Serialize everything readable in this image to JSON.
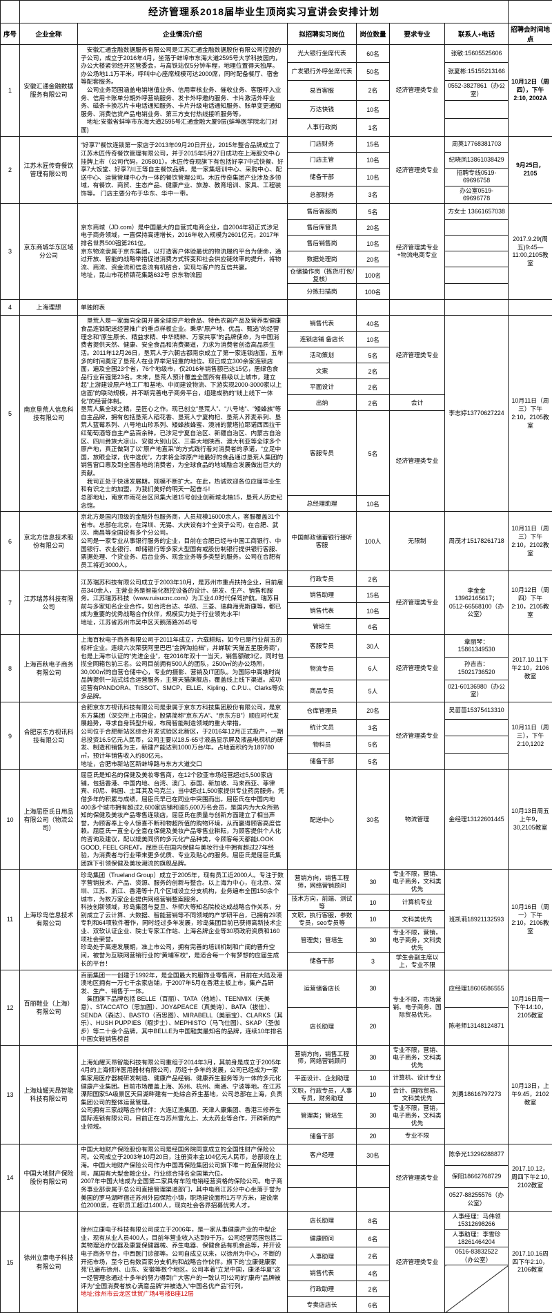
{
  "title": "经济管理系2018届毕业生顶岗实习宣讲会安排计划",
  "headers": {
    "seq": "序号",
    "company": "企业全称",
    "intro": "企业情况介绍",
    "position": "拟招聘实习岗位",
    "count": "岗位数量",
    "major": "要求专业",
    "contact": "联系人+电话",
    "schedule": "招聘会时间地点"
  },
  "companies": [
    {
      "seq": "1",
      "name": "安徽汇通金融数据服务有限公司",
      "intro": [
        {
          "text": "　安徽汇通金融数据服务有限公司是江苏汇通金融数据股份有限公司控股的子公司，成立于2016年4月，坐落于蚌埠市东海大道2595号大学科技园内，办公大楼紧邻经开区管委会，与高铁站仅5分钟车程，地理位置得天独厚。办公场地1.1万平米，呼叫中心座席规模可达2000席，同时配备餐厅、宿舍等配套服务。"
        },
        {
          "text": "　公司业务范围涵盖电销增值业务、信用审核业务、催收业务、客服呼入业务、信用卡账单分期外呼营销服务、发卡外呼邀约服务、卡片激活外呼业务、磁条卡换芯片卡电话通知服务、卡片升级电话通知服务、账单变更通知服务、消费信贷产品电销业务、第三方支付热线接听服务等。"
        },
        {
          "text": "　地址:安徽省蚌埠市东海大道2595号汇通金融大厦9层(蚌埠医学院北门对面)"
        }
      ],
      "positions": [
        {
          "name": "光大银行坐席代表",
          "count": "60名"
        },
        {
          "name": "广发银行外呼坐席代表",
          "count": "50名"
        },
        {
          "name": "易百客服",
          "count": "2名"
        },
        {
          "name": "万达快钱",
          "count": "10名"
        },
        {
          "name": "人事行政岗",
          "count": "1名"
        }
      ],
      "majors": [
        {
          "text": "经济管理类专业",
          "span": 5
        }
      ],
      "contacts": [
        {
          "text": "张敏:15605525606",
          "span": 1
        },
        {
          "text": "张夏彬:15155213166",
          "span": 1
        },
        {
          "text": "0552-3827861（办公室）",
          "span": 1
        },
        {
          "text": "",
          "span": 1
        },
        {
          "text": "",
          "span": 1
        }
      ],
      "schedule": "10月12日（周四），下午2:10, 2002A",
      "schedule_bold": true
    },
    {
      "seq": "2",
      "name": "江苏木匠传奇餐饮管理有限公司",
      "intro": [
        {
          "text": "“好享7”餐饮连锁第一家店于2013年09月20日开业，2015年整合品牌成立了江苏木匠传奇餐饮管理有限公司，并于2015年5月27日成功在上海股交中心挂牌上市（公司代码，205801）。木匠传奇现旗下有包括好享7中式快餐、好享7大饭堂、好享7川王等自主餐饮品牌，是一家集培训中心、采购中心、配送中心、运营管理中心为一体的餐饮管理公司。木匠传奇集团产业涉及多领域，有餐饮、商贸、生态产品、健康产业、旅游、教育培训、家具、工程装饰等。 门店主要分布于华东、华中一带。"
        }
      ],
      "positions": [
        {
          "name": "门店财务",
          "count": "15名"
        },
        {
          "name": "门店主管",
          "count": "10名"
        },
        {
          "name": "储备干部",
          "count": "10名"
        },
        {
          "name": "总部财务",
          "count": "3名"
        }
      ],
      "majors": [
        {
          "text": "经济管理类专业",
          "span": 4
        }
      ],
      "contacts": [
        {
          "text": "周英17768381703",
          "span": 1
        },
        {
          "text": "纪晓凤13861038429",
          "span": 1
        },
        {
          "text": "招聘专线0519-69696758",
          "span": 1
        },
        {
          "text": "办公室0519-69696778",
          "span": 1
        }
      ],
      "schedule": "9月25日，2105",
      "schedule_bold": true
    },
    {
      "seq": "3",
      "name": "京东商城华东区域分公司",
      "intro": [
        {
          "text": "京东商城（JD.com）是中国最大的自营式电商企业，自2004年初正式涉足电子商务领域，一直保持高速增长，2016年收入规模为2601亿元，2017年排名世界500强第261位。"
        },
        {
          "text": "京东物流隶属于京东集团，以打造客户体验最优的物流履约平台为使命，通过开放、智能的战略举措促进消费方式转变和社会供应链效率的提升，将物流、商流、资金流和信息流有机结合，实现与客户的互信共赢。"
        },
        {
          "text": "地址，昆山市花桥镇花集路632号 京东物流园"
        }
      ],
      "positions": [
        {
          "name": "售后客服岗",
          "count": "5名"
        },
        {
          "name": "售后库管员",
          "count": "20名"
        },
        {
          "name": "售后销售岗",
          "count": "10名"
        },
        {
          "name": "数据处理岗",
          "count": "20名"
        },
        {
          "name": "仓储操作岗（拣货/打包/复核）",
          "count": "100名"
        },
        {
          "name": "分拣扫描岗",
          "count": "100名"
        }
      ],
      "majors": [
        {
          "text": "经济管理类专业+物流电商专业",
          "span": 6
        }
      ],
      "contacts": [
        {
          "text": "方女士 13661657038",
          "span": 1
        },
        {
          "text": "",
          "span": 1
        },
        {
          "text": "",
          "span": 1
        },
        {
          "text": "",
          "span": 1
        },
        {
          "text": "",
          "span": 1
        },
        {
          "text": "",
          "span": 1
        }
      ],
      "schedule": "2017.9.29(周五)9:45—11:00,2105教室"
    },
    {
      "seq": "4",
      "name": "上海理想",
      "intro": [
        {
          "text": "单独附表"
        }
      ],
      "positions": [],
      "majors": [],
      "contacts": [],
      "schedule": ""
    },
    {
      "seq": "5",
      "name": "南京垦荒人信息科技有限公司",
      "intro": [
        {
          "text": "　垦荒人是一家面向全国开展全球原产地食品、特色农副产品及营养型健康食品连锁配送经营推广的重点样板企业。秉承“原产地、优品、甄选”的经营理念和“原生原长、精益求精、中华精粹、万家共享”的品牌使命，为中国消费者提供天然、健康、安全食品和消费渠道，力求为消费者创造高品质生活。2011年12月26日，垦荒人于六朝古都南京成立了第一家连锁店面，五年多的时间奠定了垦荒人在业界举足轻重的地位。现已成立300余家连锁店面，遍及全国23个省，76个地级市，仅2016年销售额已达15亿，居绿色食品行业百强第23名。未来，垦荒人预计覆盖全国所有县级以上城市，建立起“上游建设原产地工厂和基地、中间建设物流、下游实现2000-3000家以上店面”的联动规模，并不断完善电子商务平台，组建成熟的“线上线下一体化”的经营体制。"
        },
        {
          "text": "垦荒人集全球之精，呈匠心之作。现已创立“垦荒人”、“八号地”、“矮蜂族”等自主品牌，拥有包括垦荒人稻花香、垦荒人宁夏枸杞、垦荒人荞麦系列、垦荒人蓝莓系列、八号地山珍系列、矮蜂族蜂蜜、澳洲的蒙塔拉耶诺西西拉干红葡萄酒等自主产品百余种。已涉足宁夏自治区、新疆自治区、内蒙古自治区、四川彝族大凉山、安徽大别山区、三秦大地陕西、澳大利亚等全球多个原产地，真正做到了以“原产地直采”的方式践行着对消费者的承诺，“立足中国，放眼全球，优中选优”，力求将全球原产地最好的食品通过垦荒人集团的销售窗口惠及到全国各地的消费者，为全球食品的地域融合发展做出巨大的贡献。"
        },
        {
          "text": "　我司正处于快速发展期，规模不断扩大。在此，热诚欢迎各位应届毕业生和有识之士的加盟，为我们美好的明天一起奋斗!"
        },
        {
          "text": "总部地址，南京市雨花台区凤集大道15号创业创新城北柚15，垦荒人历史纪念馆。"
        }
      ],
      "positions": [
        {
          "name": "销售代表",
          "count": "40名"
        },
        {
          "name": "连锁店铺 备店长",
          "count": "10名"
        },
        {
          "name": "活动策划",
          "count": "5名"
        },
        {
          "name": "文案",
          "count": "2名"
        },
        {
          "name": "平面设计",
          "count": "2名"
        },
        {
          "name": "出纳",
          "count": "2名"
        },
        {
          "name": "客服专员",
          "count": "5名"
        },
        {
          "name": "总经理助理",
          "count": "10名"
        }
      ],
      "majors": [
        {
          "text": "经济管理类专业",
          "span": 5
        },
        {
          "text": "会计",
          "span": 1
        },
        {
          "text": "经济管理类专业",
          "span": 2
        }
      ],
      "contacts": [
        {
          "text": "李志婷13770627224",
          "span": 8
        }
      ],
      "schedule": "10月11日（周三）下午2:10，2105教室"
    },
    {
      "seq": "6",
      "name": "京北方信息技术股份有限公司",
      "intro": [
        {
          "text": "京北方是国内顶级的金融外包服务商，人员规模16000余人，客服覆盖31个省市。总部在北京，在深圳、无锡、大庆设有3个全资子公司，在合肥、武汉、南昌等全国设有多个分公司。"
        },
        {
          "text": "公司是一家专业从事银行服务的企业，目前在合肥已经与中国工商银行、中国银行、农业银行、邮储银行等多家大型国有或股份制银行提供银行客服、票据处理、个贷业务、后台业务、现金业务等多类型的服务。公司在合肥有员工将近3000人。"
        }
      ],
      "positions": [
        {
          "name": "中国邮政储蓄银行接听客服",
          "count": "100人"
        }
      ],
      "majors": [
        {
          "text": "无限制",
          "span": 1
        }
      ],
      "contacts": [
        {
          "text": "周茂才15178261718",
          "span": 1
        }
      ],
      "schedule": "10月11日（周三）下午2:10，2102教室"
    },
    {
      "seq": "7",
      "name": "江苏瑞苏科技有限公司",
      "intro": [
        {
          "text": "江苏瑞苏科技有限公司成立于2003年10月，是苏州市重点扶持企业，目前雇员340余人，主营业务是智能化数控设备的设计、研发、生产、销售和服务。江苏瑞苏科技（www.ruisucnc.com）为工业4.0时代保驾护航。瑞苏目前与多家知名企业合作，如台湾台达、华硕、三菱、瑞典海克斯康等，都已成为重要的优秀战略合作伙伴，规模实力处于行业领先水平!"
        },
        {
          "text": "地址，江苏省苏州市吴中区天鹅荡路2645号"
        }
      ],
      "positions": [
        {
          "name": "行政专员",
          "count": "2名"
        },
        {
          "name": "销售助理",
          "count": "15名"
        },
        {
          "name": "销售代表",
          "count": "10名"
        },
        {
          "name": "管培生",
          "count": "6名"
        }
      ],
      "majors": [
        {
          "text": "经济管理类专业",
          "span": 4
        }
      ],
      "contacts": [
        {
          "text": "李金金13962165617；0512-66568100（办公室）",
          "span": 4
        }
      ],
      "schedule": "10月12日（周四）下午2:10，2105教室"
    },
    {
      "seq": "8",
      "name": "上海百秋电子商务有限公司",
      "intro": [
        {
          "text": "上海百秋电子商务有限公司于2011年成立，六载耕耘，如今已是行业前五的标杆企业。连续六次荣获阿里巴巴“金牌淘拍档”，并蝉联“天猫五星服务商”，也是上海市认证的“先进企业”，在2016年双十一当天，销售额破3亿，同时包揽全网箱包前三名。公司目前拥有500人的团队，2500㎡的办公场所，30,000㎡的自营仓储中心，专业的摄影、营销及IT团队。为国际中高端时尚品牌提供一站式综合运营服务，主营天猫旗舰店，覆盖线上线下渠道。成功运营有PANDORA、TISSOT、SMCP、ELLE、Kipling、C.P.U.、Clarks等众多品牌。"
        }
      ],
      "positions": [
        {
          "name": "客服专员",
          "count": "30人"
        },
        {
          "name": "物流专员",
          "count": "6人"
        },
        {
          "name": "商品专员",
          "count": "5人"
        }
      ],
      "majors": [
        {
          "text": "经济管理类专业",
          "span": 3
        }
      ],
      "contacts": [
        {
          "text": "章丽琴：15861349530",
          "span": 1
        },
        {
          "text": "孙吉吉：15021736520",
          "span": 1
        },
        {
          "text": "021-60136980（办公室）",
          "span": 1
        }
      ],
      "schedule": "2017.10.11下午2:10，2106教室"
    },
    {
      "seq": "9",
      "name": "合肥京东方视讯科技有限公司",
      "intro": [
        {
          "text": "合肥京东方视讯科技有限公司是隶属于京东方科技集团股份有限公司，是京东方集团（深交所上市国企，股票简称“京东方A”、“京东方B”）顺应时代发展趋势，寻求自身转型升级，布局智能制造领域的重大举措。"
        },
        {
          "text": "公司位于合肥新站区综合开发试验区北新区，于2016年12月正式投产，一期总投资16.5亿元人民币，公司主要以18.5-65寸液晶显示屏及液晶电视机的研发、制造和销售为主，新建产能达到1000万台/年。占地面积约为189780㎡，预计年销售收入约80亿元。"
        },
        {
          "text": "地址，合肥市新站区新蚌埠路与东方大道交口"
        }
      ],
      "positions": [
        {
          "name": "仓库管理员",
          "count": "20名"
        },
        {
          "name": "统计文员",
          "count": "3名"
        },
        {
          "name": "物料员",
          "count": "5名"
        },
        {
          "name": "储备干部",
          "count": "5名"
        }
      ],
      "majors": [
        {
          "text": "经济管理类专业",
          "span": 4
        }
      ],
      "contacts": [
        {
          "text": "吴苗苗15375413310",
          "span": 1
        },
        {
          "text": "",
          "span": 1
        },
        {
          "text": "",
          "span": 1
        },
        {
          "text": "",
          "span": 1
        }
      ],
      "schedule": "10月11日（周三），下午2:10,1202"
    },
    {
      "seq": "10",
      "name": "上海屈臣氏日用品有限公司（物流公司）",
      "intro": [
        {
          "text": "屈臣氏是知名的保健及美妆零售商，在12个欧亚市场经营超过5,500家店铺，包括香港、中国内地、台湾、澳门、泰国、新加坡、马来西亚、菲律宾、印尼、韩国、土耳其及乌克兰，当中超过1,500家提供专业药房服务。凭借多年的积累与成绩，屈臣氏早已在同业中突围而出。屈臣氏在中国内地400多个城市拥有超过2,600家店铺和逾5,600万名会员，是国内为大众所熟知的保健及美妆产品零售连锁店。屈臣氏在质量与创新方面建立了相当声誉，为顾客奉上令人惊喜不断和物超所值的购物环境，从而赢得顾客高度信赖。屈臣氏一直全心全意在保健及美妆产品零售业耕耘，为顾客提供个人化的咨询及建议，配以媲美同侪的多元化产品种类，令顾客每天都能LOOK GOOD, FEEL GREAT。屈臣氏在国内保健与美妆行业中拥有超过27年经验，为消费者与行业带来更多优质、专业及贴心的服务。屈臣氏是屈臣氏集团旗下引领保健及美妆潮流的旗舰品牌。"
        }
      ],
      "positions": [
        {
          "name": "配送中心",
          "count": "30名"
        }
      ],
      "majors": [
        {
          "text": "物流管理",
          "span": 1
        }
      ],
      "contacts": [
        {
          "text": "金经理13122601445",
          "span": 1
        }
      ],
      "schedule": "10月13日周五上午9，30,2105教室"
    },
    {
      "seq": "11",
      "name": "上海珍岛信息技术有限公司",
      "intro": [
        {
          "text": "珍岛集团（Trueland Group）成立于2005年，现有员工近2000人。专注于数字营销技术、产品、资源、服务的创新与整合。以上海为中心，在北京、深圳、江苏、浙江、香港等十几个区域设立分支机构，业务遍布全国150余个城市，为数万家企业提供网络营销整案服务。"
        },
        {
          "text": "科技创新领域，珍岛集团与复旦、华师大等知名院校达成战略合作关系，分别成立了云计算、大数据、智能营销等不同领域的产学研平台，已拥有29项专利和64项软件著作，同时经过多年发展，珍岛集团目前已获得高新技术企业、双软认证企业、院士专家工作站、上海名牌企业等30项政府资质和160项社会荣誉。"
        },
        {
          "text": "珍岛处于高速发展期，准上市公司，拥有完善的培训机制和广阔的晋升空间，被誉为互联网营销行业的“黄埔军校”，是适合每一个有梦想的应届生成长的平台！"
        }
      ],
      "positions": [
        {
          "name": "营销方向，销售工程师，网络营销顾问",
          "count": "30"
        },
        {
          "name": "技术方向，前端、测试等",
          "count": "10"
        },
        {
          "name": "文职，执行客服，参数专员，seo专员等",
          "count": "10"
        },
        {
          "name": "管理类；管培生",
          "count": "30"
        },
        {
          "name": "储备干部",
          "count": "3"
        }
      ],
      "majors": [
        {
          "text": "专业不限，营销、电子商务，文科类优先",
          "span": 1
        },
        {
          "text": "计算机专业",
          "span": 1
        },
        {
          "text": "文科类优先",
          "span": 1
        },
        {
          "text": "专业不限，营销，电子商务，文科类优先",
          "span": 1
        },
        {
          "text": "学生会副主席以上，专业不限",
          "span": 1
        }
      ],
      "contacts": [
        {
          "text": "班凯莉18921132593",
          "span": 5
        }
      ],
      "schedule": "10月16日（周一）下午2:10，2106教室"
    },
    {
      "seq": "12",
      "name": "百丽鞋业（上海）有限公司",
      "intro": [
        {
          "text": "百丽集团一一创建于1992年，是全国最大的服饰业零售商，目前在大陆及港澳地区拥有一万七千余家店铺，于2007年5月在香港主板上市，集产品研发、生产、销售于一体。"
        },
        {
          "text": "　集团旗下品牌包括 BELLE（百丽）、TATA（他她）、TEENMIX（天美意）、STACCATO（思加图）、JOY&PEACE（真美诗）、BATA（拔佳）、SENDA（森达）、BASTO（百思图）、MIRABELL（美丽宝）、CLARKS（其乐）、HUSH PUPPIES（暇步士）、MEPHISTO（马飞仕图）、SKAP（圣伽步）等二十余个品牌，其中BELLE为中国鞋类最知名的品牌，连续10年排名中国女鞋销售榜首"
        }
      ],
      "positions": [
        {
          "name": "运营储备店长",
          "count": "30"
        },
        {
          "name": "店长助理",
          "count": "20"
        }
      ],
      "majors": [
        {
          "text": "专业不限，市场营销、电子商务、国际贸易优先。",
          "span": 2
        }
      ],
      "contacts": [
        {
          "text": "应经理18606586555",
          "span": 1
        },
        {
          "text": "陈老师13148124871",
          "span": 1
        }
      ],
      "schedule": "10月16日周一下午14:10，2105教室"
    },
    {
      "seq": "13",
      "name": "上海灿耀天昂智能科技有限公司",
      "intro": [
        {
          "text": "上海灿耀天昂智能科技有限公司重组于2014年3月，其前身是成立于2005年4月的上海倾洋医用器材有限公司，历经十多年的发展，公司已经成为一家集家用医疗器械研发制造、健康产品经销、健康养生服务等为一体的多元化健康产业集团。目前市场覆盖上海、苏州、杭州、南通、宁波等地。在江苏溧阳国家5A级景区天目湖畔建有一处综合养生基地，公司总部在上海，负责集团公司的整体运营管理。"
        },
        {
          "text": "公司拥有三家战略合作伙伴：大连辽渔集团、天津人康集团、香港三修养生国际连锁有限公司。目前正在与苏州雷允上、太太药业等合作，开辟新的产业领域。"
        }
      ],
      "positions": [
        {
          "name": "营销方向，销售工程师，网络营销顾问",
          "count": "30"
        },
        {
          "name": "平面设计、企划助理",
          "count": "10"
        },
        {
          "name": "文职，行政专员，人事专员，财务助理",
          "count": "10"
        },
        {
          "name": "管理类；管培生",
          "count": "30"
        },
        {
          "name": "储备干部",
          "count": "20"
        }
      ],
      "majors": [
        {
          "text": "专业不限，营销、电子商务，文科类优先",
          "span": 1
        },
        {
          "text": "计算机、设计专业",
          "span": 1
        },
        {
          "text": "会计、国际贸易、文科类优先",
          "span": 1
        },
        {
          "text": "专业不限，营销，电子商务，文科类优先",
          "span": 1
        },
        {
          "text": "专业不限",
          "span": 1
        }
      ],
      "contacts": [
        {
          "text": "刘勇18616797273",
          "span": 5
        }
      ],
      "schedule": "10月13日，上午9:45，2102教室"
    },
    {
      "seq": "14",
      "name": "中国大地财产保险股份有限公司",
      "intro": [
        {
          "text": "中国大地财产保险股份有限公司是经国务院同意成立的全国性财产保险公司。公司成立于2003年10月20日，注册资本金104亿元人民币，总部设在上海。中国大地财产保险公司作为中国再保险集团公司旗下唯一的直保财险公司，属国有大型金融企业，行业综合排名全国第六位。"
        },
        {
          "text": "2007年中国大地成为全国第二家具有车险电销经营资格的保险公司。电子商务事业部隶属于总公司直接管理渠道部门，其中电商江苏分中心坐落于誉为美国的罗马湖畔宿迁苏州外园保险小镇，职场建设面积1万平方米，建设席位2000席，在职员工超过1400人，现向社会各界招募优秀人才。"
        }
      ],
      "positions": [
        {
          "name": "客户经理",
          "count": "30名"
        },
        {
          "name": "",
          "count": ""
        },
        {
          "name": "",
          "count": ""
        }
      ],
      "majors": [
        {
          "text": "经济管理类专业",
          "span": 3
        }
      ],
      "contacts": [
        {
          "text": "陈争光13296288877",
          "span": 1
        },
        {
          "text": "保阳18662768729",
          "span": 1
        },
        {
          "text": "0527-88255576（办公室）",
          "span": 1
        }
      ],
      "schedule": "2017.10.12，周四下午2:10, 2102教室"
    },
    {
      "seq": "15",
      "name": "徐州立康电子科技有限公司",
      "intro": [
        {
          "text": "徐州立康电子科技有限公司成立于2006年，是一家从事健康产业的中型企业，现有从业人员400人，目前年营业收入达到9千万。公司经营范围包括二类物理治疗仪器及康复保健器械、养生电器、保健食品有机食品等，并开设电子商务平台，中西医门诊部等。公司自成立以来，以徐州为中心，不断的开拓市场，至今已有数百家分支机构和战略合作伙伴。旗下的‘立康健康家苑’已遍布徐州、山东、安徽等数个地区。公司本着“立足中国，康泽华夏”这一经营理念通过十多年的努力得到广大客户的一致认可!公司的“康舟”品牌被评为“全国消费者放心满意品牌”并被选入“中国名优产品”行列。",
          "red": false
        },
        {
          "text": "地址;徐州市云龙区世贸广场4号楼B座12层",
          "red": true
        }
      ],
      "positions": [
        {
          "name": "店长助理",
          "count": "8名"
        },
        {
          "name": "健康顾问",
          "count": "6名"
        },
        {
          "name": "人事助理",
          "count": "2名"
        },
        {
          "name": "销售代表",
          "count": "4名"
        },
        {
          "name": "行政助理",
          "count": "2名"
        },
        {
          "name": "专卖店店长",
          "count": "6名"
        }
      ],
      "majors": [
        {
          "text": "经济管理类专业",
          "span": 6
        }
      ],
      "contacts": [
        {
          "text": "人事经理：马伟领\n15312698266",
          "span": 1
        },
        {
          "text": "人事助理：李雪珍\n18261464204",
          "span": 1
        },
        {
          "text": "0516-83832522\n（办公室）",
          "span": 1
        },
        {
          "text": "",
          "span": 3,
          "diagonal": true
        }
      ],
      "schedule": "2017.10.16周四下午2:10，2106教室"
    }
  ]
}
